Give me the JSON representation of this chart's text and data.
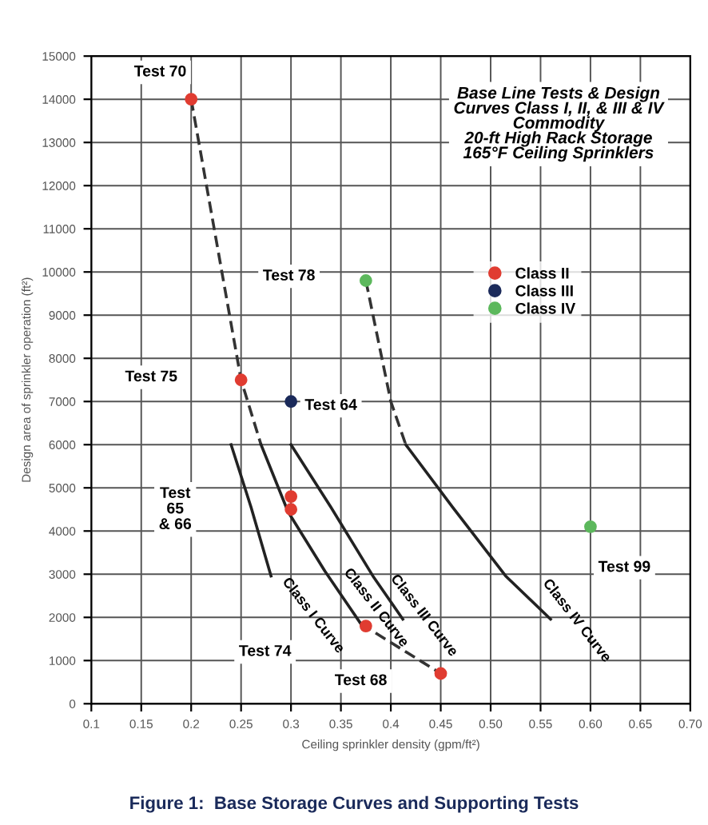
{
  "chart_data": {
    "type": "scatter",
    "title": "Base Line Tests & Design\nCurves Class I, II, & III & IV\nCommodity\n20-ft High Rack Storage\n165°F Ceiling Sprinklers",
    "xlabel": "Ceiling sprinkler density (gpm/ft²)",
    "ylabel": "Design area of sprinkler operation (ft²)",
    "xlim": [
      0.1,
      0.7
    ],
    "xticks": [
      0.1,
      0.15,
      0.2,
      0.25,
      0.3,
      0.35,
      0.4,
      0.45,
      {
        "value": 0.5,
        "label": "0.50"
      },
      {
        "value": 0.55,
        "label": "0.55"
      },
      {
        "value": 0.6,
        "label": "0.60"
      },
      {
        "value": 0.65,
        "label": "0.65"
      },
      {
        "value": 0.7,
        "label": "0.70"
      }
    ],
    "ylim": [
      0,
      15000
    ],
    "yticks": [
      0,
      1000,
      2000,
      3000,
      4000,
      5000,
      6000,
      7000,
      8000,
      9000,
      10000,
      11000,
      12000,
      13000,
      14000,
      15000
    ],
    "grid": true,
    "legend": "top right",
    "series": [
      {
        "type": "line",
        "marker": "none",
        "color": "#333333",
        "line_style": "dashed",
        "x": [
          0.2,
          0.25,
          0.27
        ],
        "values": [
          14000,
          7500,
          6000
        ]
      },
      {
        "type": "line",
        "marker": "none",
        "color": "#222222",
        "line_style": "solid",
        "x": [
          0.24,
          0.26,
          0.28
        ],
        "values": [
          6000,
          4550,
          2960
        ]
      },
      {
        "type": "line",
        "marker": "none",
        "color": "#222222",
        "line_style": "solid",
        "x": [
          0.27,
          0.297,
          0.334,
          0.37
        ],
        "values": [
          6000,
          4450,
          3070,
          1850
        ]
      },
      {
        "type": "line",
        "marker": "none",
        "color": "#333333",
        "line_style": "dashed",
        "x": [
          0.37,
          0.45
        ],
        "values": [
          1850,
          700
        ]
      },
      {
        "type": "line",
        "marker": "none",
        "color": "#222222",
        "line_style": "solid",
        "x": [
          0.3,
          0.34,
          0.382,
          0.412
        ],
        "values": [
          6000,
          4550,
          2960,
          1960
        ]
      },
      {
        "type": "line",
        "marker": "none",
        "color": "#333333",
        "line_style": "dashed",
        "x": [
          0.375,
          0.4,
          0.415
        ],
        "values": [
          9800,
          7000,
          6000
        ]
      },
      {
        "type": "line",
        "marker": "none",
        "color": "#222222",
        "line_style": "solid",
        "x": [
          0.415,
          0.462,
          0.515,
          0.56
        ],
        "values": [
          6000,
          4550,
          2960,
          1960
        ]
      },
      {
        "name": "Class II",
        "marker": "circle",
        "color": "#e03c31",
        "x": [
          0.2,
          0.25,
          0.3,
          0.3,
          0.375,
          0.45
        ],
        "values": [
          14000,
          7500,
          4800,
          4500,
          1800,
          700
        ]
      },
      {
        "name": "Class III",
        "marker": "circle",
        "color": "#1b2a5a",
        "x": [
          0.3
        ],
        "values": [
          7000
        ]
      },
      {
        "name": "Class IV",
        "marker": "circle",
        "color": "#5cb85c",
        "x": [
          0.375,
          0.6
        ],
        "values": [
          9800,
          4100
        ]
      }
    ],
    "annotations": [
      "Test 70",
      "Test 75",
      "Test 64",
      "Test\n65\n& 66",
      "Test 74",
      "Test 68",
      "Test 78",
      "Test 99",
      "Class I Curve",
      "Class II Curve",
      "Class III Curve",
      "Class IV Curve",
      "Figure 1:  Base Storage Curves and Supporting Tests"
    ]
  }
}
